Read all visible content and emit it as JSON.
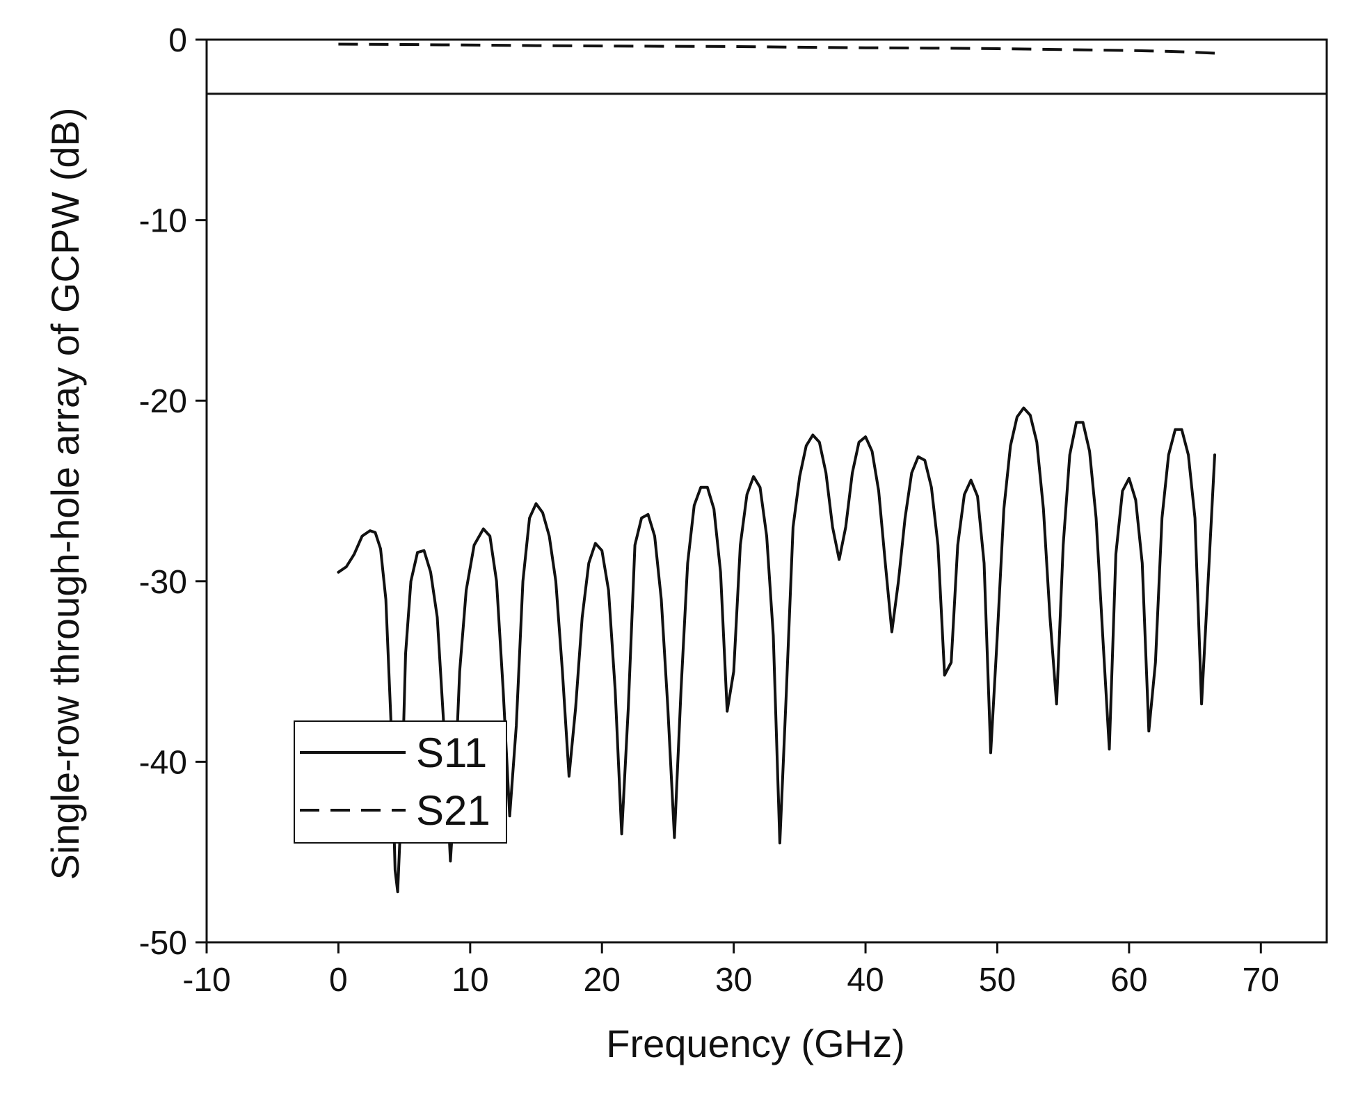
{
  "chart_data": {
    "type": "line",
    "xlabel": "Frequency (GHz)",
    "ylabel": "Single-row through-hole array of GCPW (dB)",
    "xlim": [
      -10,
      75
    ],
    "ylim": [
      -50,
      0
    ],
    "x_ticks": [
      "-10",
      "0",
      "10",
      "20",
      "30",
      "40",
      "50",
      "60",
      "70"
    ],
    "y_ticks": [
      "0",
      "-10",
      "-20",
      "-30",
      "-40",
      "-50"
    ],
    "grid": false,
    "legend_position": "lower-left",
    "reference_line": {
      "y": -3,
      "style": "solid"
    },
    "series": [
      {
        "name": "S11",
        "style": "solid",
        "color": "#111111",
        "points": [
          [
            0,
            -29.5
          ],
          [
            0.6,
            -29.2
          ],
          [
            1.2,
            -28.5
          ],
          [
            1.8,
            -27.5
          ],
          [
            2.4,
            -27.2
          ],
          [
            2.8,
            -27.3
          ],
          [
            3.2,
            -28.2
          ],
          [
            3.6,
            -31
          ],
          [
            4.0,
            -38
          ],
          [
            4.3,
            -46
          ],
          [
            4.5,
            -47.2
          ],
          [
            4.8,
            -42
          ],
          [
            5.1,
            -34
          ],
          [
            5.5,
            -30
          ],
          [
            6.0,
            -28.4
          ],
          [
            6.5,
            -28.3
          ],
          [
            7.0,
            -29.5
          ],
          [
            7.5,
            -32
          ],
          [
            8.0,
            -38
          ],
          [
            8.5,
            -45.5
          ],
          [
            8.8,
            -42
          ],
          [
            9.2,
            -35
          ],
          [
            9.7,
            -30.5
          ],
          [
            10.3,
            -28
          ],
          [
            11.0,
            -27.1
          ],
          [
            11.5,
            -27.5
          ],
          [
            12.0,
            -30
          ],
          [
            12.5,
            -36
          ],
          [
            13.0,
            -43
          ],
          [
            13.5,
            -38
          ],
          [
            14.0,
            -30
          ],
          [
            14.5,
            -26.5
          ],
          [
            15.0,
            -25.7
          ],
          [
            15.5,
            -26.2
          ],
          [
            16.0,
            -27.5
          ],
          [
            16.5,
            -30
          ],
          [
            17.0,
            -35
          ],
          [
            17.5,
            -40.8
          ],
          [
            18.0,
            -37
          ],
          [
            18.5,
            -32
          ],
          [
            19.0,
            -29
          ],
          [
            19.5,
            -27.9
          ],
          [
            20.0,
            -28.3
          ],
          [
            20.5,
            -30.5
          ],
          [
            21.0,
            -36
          ],
          [
            21.5,
            -44
          ],
          [
            22.0,
            -37
          ],
          [
            22.5,
            -28
          ],
          [
            23.0,
            -26.5
          ],
          [
            23.5,
            -26.3
          ],
          [
            24.0,
            -27.5
          ],
          [
            24.5,
            -31
          ],
          [
            25.0,
            -37
          ],
          [
            25.5,
            -44.2
          ],
          [
            26.0,
            -36
          ],
          [
            26.5,
            -29
          ],
          [
            27.0,
            -25.8
          ],
          [
            27.5,
            -24.8
          ],
          [
            28.0,
            -24.8
          ],
          [
            28.5,
            -26
          ],
          [
            29.0,
            -29.5
          ],
          [
            29.5,
            -37.2
          ],
          [
            30.0,
            -35
          ],
          [
            30.5,
            -28
          ],
          [
            31.0,
            -25.2
          ],
          [
            31.5,
            -24.2
          ],
          [
            32.0,
            -24.8
          ],
          [
            32.5,
            -27.5
          ],
          [
            33.0,
            -33
          ],
          [
            33.5,
            -44.5
          ],
          [
            34.0,
            -36
          ],
          [
            34.5,
            -27
          ],
          [
            35.0,
            -24.2
          ],
          [
            35.5,
            -22.5
          ],
          [
            36.0,
            -21.9
          ],
          [
            36.5,
            -22.3
          ],
          [
            37.0,
            -24
          ],
          [
            37.5,
            -27
          ],
          [
            38.0,
            -28.8
          ],
          [
            38.5,
            -27
          ],
          [
            39.0,
            -24
          ],
          [
            39.5,
            -22.3
          ],
          [
            40.0,
            -22
          ],
          [
            40.5,
            -22.8
          ],
          [
            41.0,
            -25
          ],
          [
            41.5,
            -29
          ],
          [
            42.0,
            -32.8
          ],
          [
            42.5,
            -30
          ],
          [
            43.0,
            -26.5
          ],
          [
            43.5,
            -24
          ],
          [
            44.0,
            -23.1
          ],
          [
            44.5,
            -23.3
          ],
          [
            45.0,
            -24.8
          ],
          [
            45.5,
            -28
          ],
          [
            46.0,
            -35.2
          ],
          [
            46.5,
            -34.5
          ],
          [
            47.0,
            -28
          ],
          [
            47.5,
            -25.2
          ],
          [
            48.0,
            -24.4
          ],
          [
            48.5,
            -25.3
          ],
          [
            49.0,
            -29
          ],
          [
            49.5,
            -39.5
          ],
          [
            50.0,
            -33
          ],
          [
            50.5,
            -26
          ],
          [
            51.0,
            -22.5
          ],
          [
            51.5,
            -20.9
          ],
          [
            52.0,
            -20.4
          ],
          [
            52.5,
            -20.8
          ],
          [
            53.0,
            -22.3
          ],
          [
            53.5,
            -26
          ],
          [
            54.0,
            -32
          ],
          [
            54.5,
            -36.8
          ],
          [
            55.0,
            -28
          ],
          [
            55.5,
            -23
          ],
          [
            56.0,
            -21.2
          ],
          [
            56.5,
            -21.2
          ],
          [
            57.0,
            -22.8
          ],
          [
            57.5,
            -26.5
          ],
          [
            58.0,
            -33
          ],
          [
            58.5,
            -39.3
          ],
          [
            59.0,
            -28.5
          ],
          [
            59.5,
            -25
          ],
          [
            60.0,
            -24.3
          ],
          [
            60.5,
            -25.5
          ],
          [
            61.0,
            -29
          ],
          [
            61.5,
            -38.3
          ],
          [
            62.0,
            -34.5
          ],
          [
            62.5,
            -26.5
          ],
          [
            63.0,
            -23
          ],
          [
            63.5,
            -21.6
          ],
          [
            64.0,
            -21.6
          ],
          [
            64.5,
            -23
          ],
          [
            65.0,
            -26.5
          ],
          [
            65.5,
            -36.8
          ],
          [
            66.0,
            -30
          ],
          [
            66.5,
            -23
          ]
        ]
      },
      {
        "name": "S21",
        "style": "dashed",
        "color": "#111111",
        "points": [
          [
            0,
            -0.25
          ],
          [
            5,
            -0.27
          ],
          [
            10,
            -0.3
          ],
          [
            15,
            -0.33
          ],
          [
            20,
            -0.35
          ],
          [
            25,
            -0.37
          ],
          [
            30,
            -0.38
          ],
          [
            35,
            -0.42
          ],
          [
            40,
            -0.45
          ],
          [
            45,
            -0.47
          ],
          [
            50,
            -0.5
          ],
          [
            55,
            -0.55
          ],
          [
            60,
            -0.6
          ],
          [
            63,
            -0.65
          ],
          [
            65,
            -0.7
          ],
          [
            66.5,
            -0.75
          ]
        ]
      }
    ]
  }
}
